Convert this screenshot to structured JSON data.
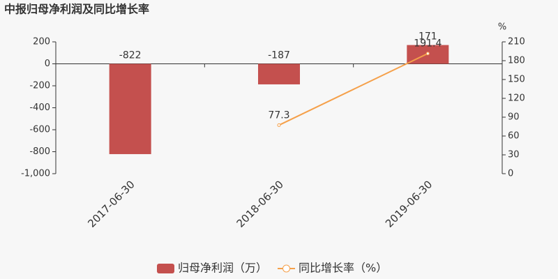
{
  "chart_data": {
    "type": "bar-line",
    "title": "中报归母净利润及同比增长率",
    "categories": [
      "2017-06-30",
      "2018-06-30",
      "2019-06-30"
    ],
    "series": [
      {
        "name": "归母净利润（万）",
        "type": "bar",
        "color": "#c4504e",
        "values": [
          -822,
          -187,
          171
        ]
      },
      {
        "name": "同比增长率（%）",
        "type": "line",
        "color": "#f5a04a",
        "axis": "y2",
        "values": [
          null,
          77.3,
          191.4
        ]
      }
    ],
    "ylim": [
      -1000,
      200
    ],
    "yticks": [
      {
        "value": -1000,
        "label": "-1,000"
      },
      -800,
      -600,
      -400,
      -200,
      0,
      200
    ],
    "y2label": "%",
    "y2lim": [
      0,
      210
    ],
    "y2ticks": [
      0,
      30,
      60,
      90,
      120,
      150,
      180,
      210
    ]
  }
}
